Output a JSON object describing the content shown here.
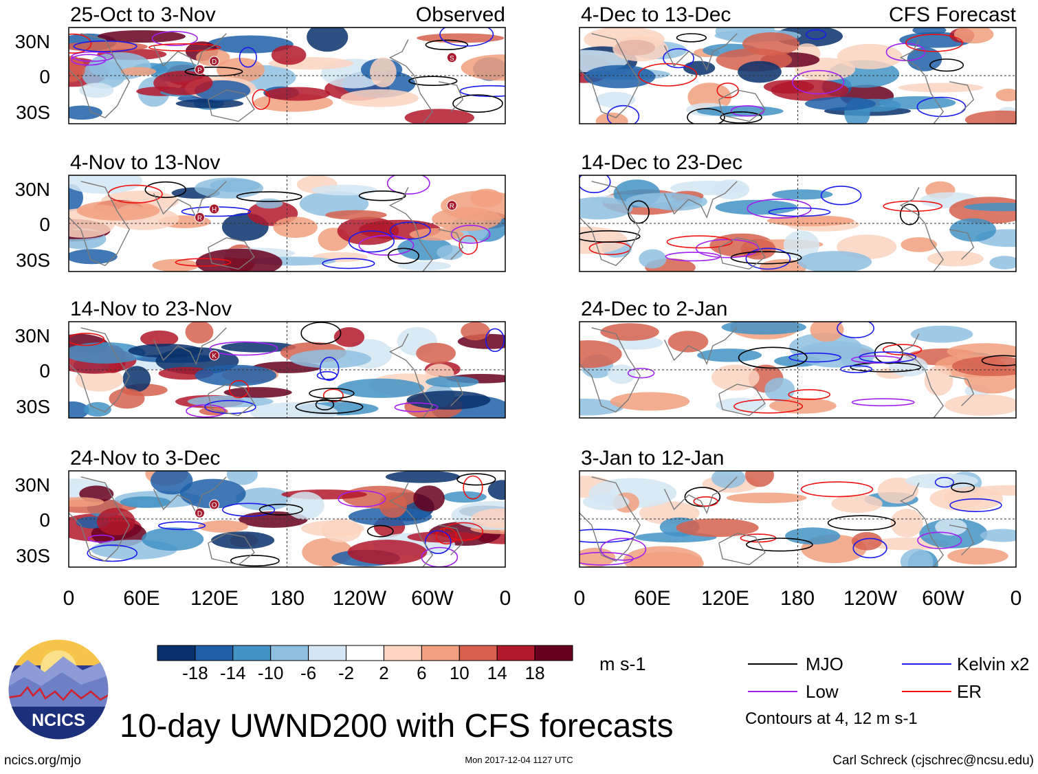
{
  "chart_data": {
    "type": "heatmap",
    "title": "10-day UWND200 with CFS forecasts",
    "variable": "UWND200",
    "units": "m s-1",
    "column_labels": {
      "left": "Observed",
      "right": "CFS Forecast"
    },
    "x_ticks": [
      "0",
      "60E",
      "120E",
      "180",
      "120W",
      "60W",
      "0"
    ],
    "y_ticks": [
      "30N",
      "0",
      "30S"
    ],
    "xlim_deg_east": [
      0,
      360
    ],
    "ylim_deg": [
      -40,
      40
    ],
    "panels": [
      {
        "label": "25-Oct to 3-Nov",
        "kind": "Observed",
        "column": "left",
        "tc_markers": [
          "D",
          "P",
          "S"
        ]
      },
      {
        "label": "4-Nov to 13-Nov",
        "kind": "Observed",
        "column": "left",
        "tc_markers": [
          "H",
          "R",
          "R"
        ]
      },
      {
        "label": "14-Nov to 23-Nov",
        "kind": "Observed",
        "column": "left",
        "tc_markers": [
          "K"
        ]
      },
      {
        "label": "24-Nov to 3-Dec",
        "kind": "Observed",
        "column": "left",
        "tc_markers": [
          "O",
          "D"
        ]
      },
      {
        "label": "4-Dec to 13-Dec",
        "kind": "CFS Forecast",
        "column": "right",
        "tc_markers": []
      },
      {
        "label": "14-Dec to 23-Dec",
        "kind": "CFS Forecast",
        "column": "right",
        "tc_markers": []
      },
      {
        "label": "24-Dec to 2-Jan",
        "kind": "CFS Forecast",
        "column": "right",
        "tc_markers": []
      },
      {
        "label": "3-Jan to 12-Jan",
        "kind": "CFS Forecast",
        "column": "right",
        "tc_markers": []
      }
    ],
    "colorbar": {
      "levels": [
        "-18",
        "-14",
        "-10",
        "-6",
        "-2",
        "2",
        "6",
        "10",
        "14",
        "18"
      ],
      "colors": [
        "#08306b",
        "#1f5fa8",
        "#4292c6",
        "#8fbfe0",
        "#d4e6f3",
        "#ffffff",
        "#fcd4c0",
        "#f1a07f",
        "#d6604d",
        "#b2182b",
        "#67001f"
      ]
    },
    "contours": {
      "legend": [
        {
          "name": "MJO",
          "color": "#000000"
        },
        {
          "name": "Kelvin x2",
          "color": "#1a1aee"
        },
        {
          "name": "Low",
          "color": "#a020f0"
        },
        {
          "name": "ER",
          "color": "#ee1111"
        }
      ],
      "note": "Contours at 4, 12 m s-1"
    }
  },
  "footer": {
    "logo_text": "NCICS",
    "website": "ncics.org/mjo",
    "timestamp": "Mon 2017-12-04 1127 UTC",
    "credit": "Carl Schreck (cjschrec@ncsu.edu)"
  },
  "colors": {
    "land_outline": "#7a7a7a",
    "frame": "#000000",
    "logo_sky": "#2d3c8f",
    "logo_sun": "#f6c44a",
    "logo_band": "#1c2f7a"
  }
}
